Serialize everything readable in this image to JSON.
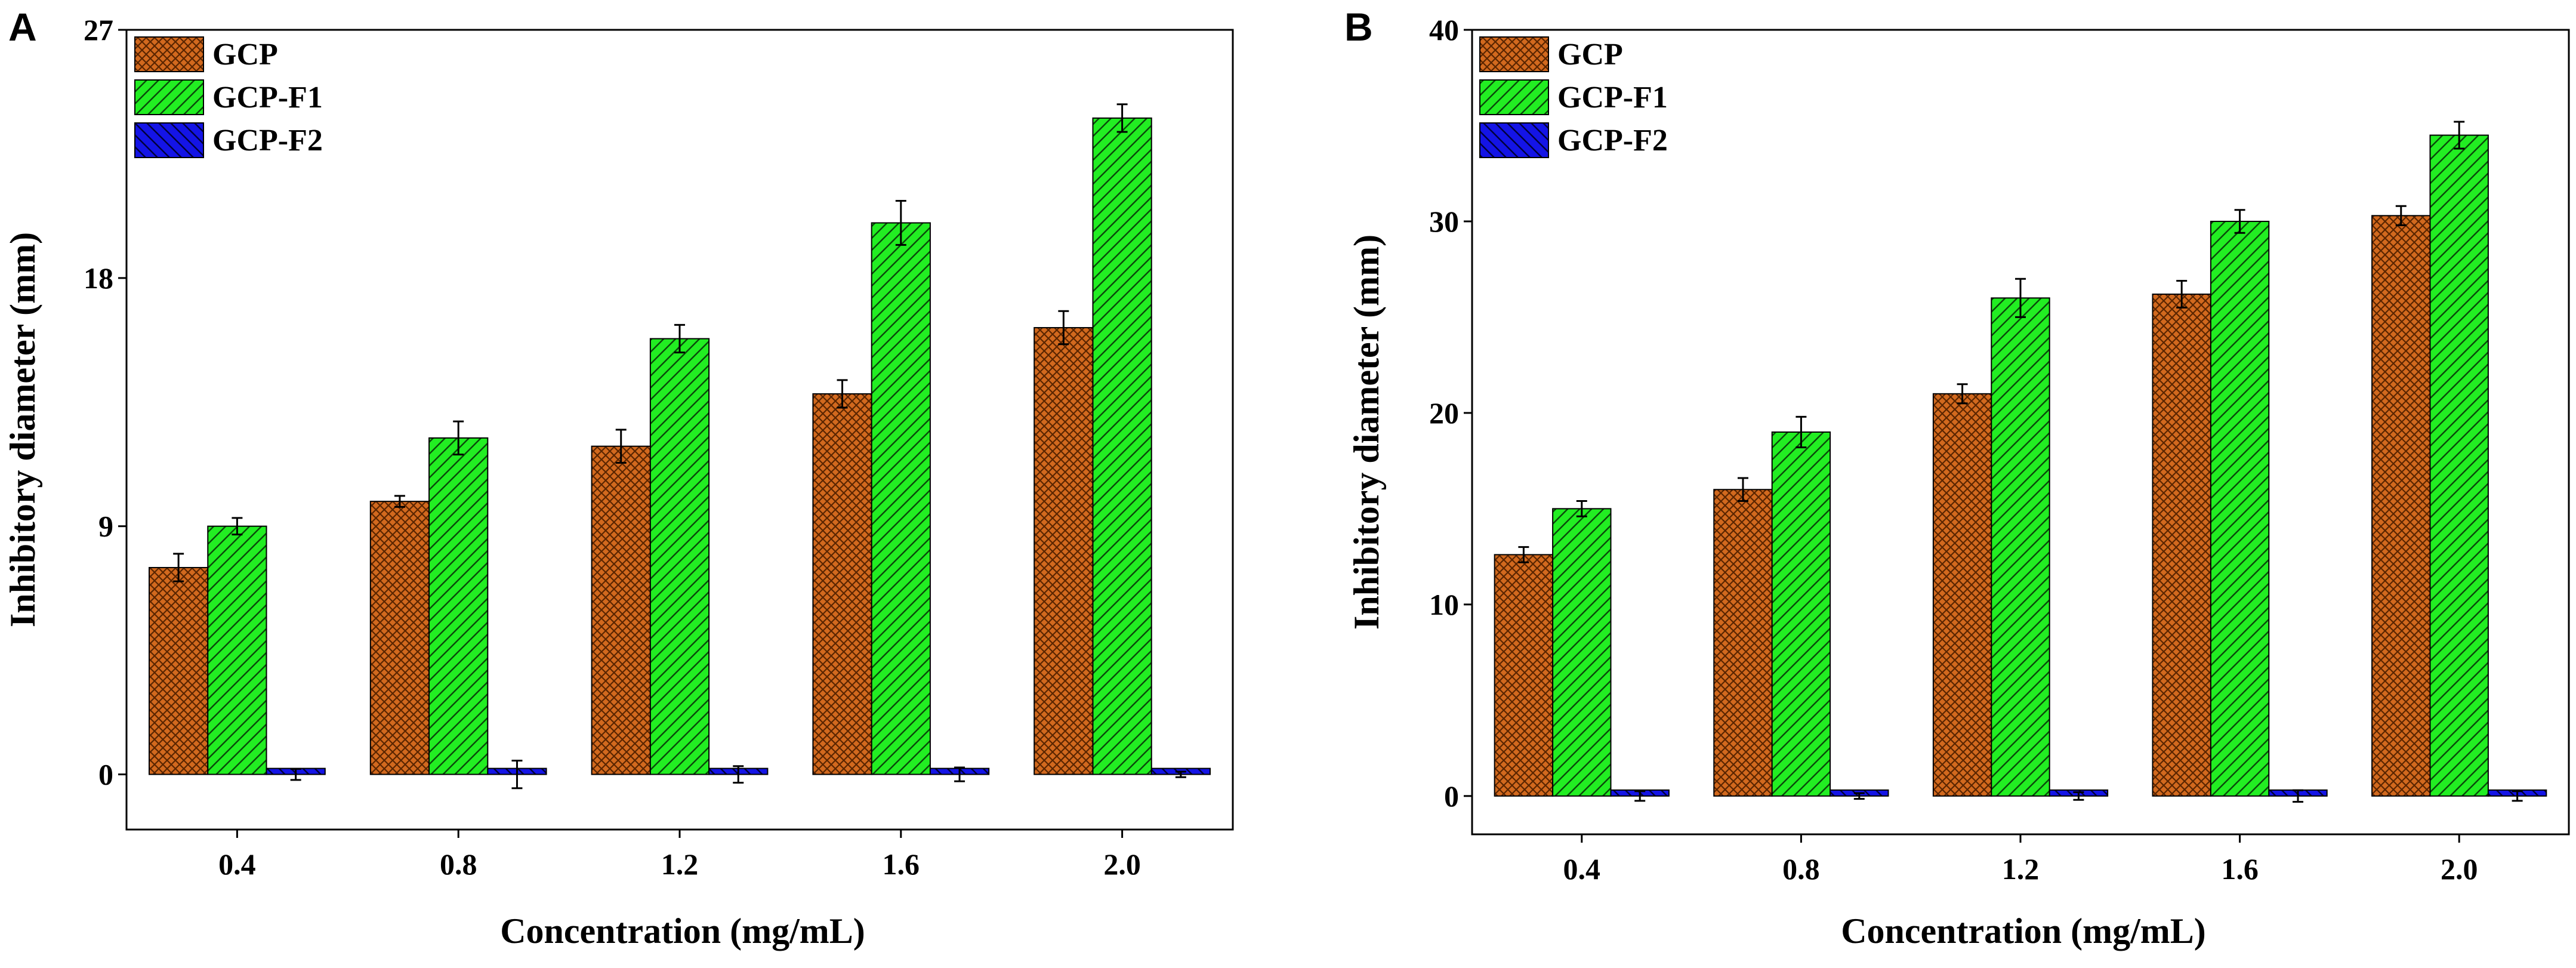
{
  "chart_data": [
    {
      "type": "bar",
      "panel_label": "A",
      "title": "",
      "xlabel": "Concentration (mg/mL)",
      "ylabel": "Inhibitory diameter (mm)",
      "ylim": [
        -2,
        27
      ],
      "yticks": [
        0,
        9,
        18,
        27
      ],
      "categories": [
        "0.4",
        "0.8",
        "1.2",
        "1.6",
        "2.0"
      ],
      "legend_position": "top-left",
      "series": [
        {
          "name": "GCP",
          "color": "#d2691e",
          "pattern": "crosshatch",
          "values": [
            7.5,
            9.9,
            11.9,
            13.8,
            16.2
          ],
          "errors": [
            0.5,
            0.2,
            0.6,
            0.5,
            0.6
          ]
        },
        {
          "name": "GCP-F1",
          "color": "#22ee22",
          "pattern": "diagonal-up",
          "values": [
            9.0,
            12.2,
            15.8,
            20.0,
            23.8
          ],
          "errors": [
            0.3,
            0.6,
            0.5,
            0.8,
            0.5
          ]
        },
        {
          "name": "GCP-F2",
          "color": "#1414e6",
          "pattern": "diagonal-down",
          "values": [
            0.0,
            0.0,
            0.0,
            0.0,
            0.0
          ],
          "errors": [
            0.2,
            0.5,
            0.3,
            0.25,
            0.1
          ]
        }
      ]
    },
    {
      "type": "bar",
      "panel_label": "B",
      "title": "",
      "xlabel": "Concentration (mg/mL)",
      "ylabel": "Inhibitory diameter (mm)",
      "ylim": [
        -2,
        40
      ],
      "yticks": [
        0,
        10,
        20,
        30,
        40
      ],
      "categories": [
        "0.4",
        "0.8",
        "1.2",
        "1.6",
        "2.0"
      ],
      "legend_position": "top-left",
      "series": [
        {
          "name": "GCP",
          "color": "#d2691e",
          "pattern": "crosshatch",
          "values": [
            12.6,
            16.0,
            21.0,
            26.2,
            30.3
          ],
          "errors": [
            0.4,
            0.6,
            0.5,
            0.7,
            0.5
          ]
        },
        {
          "name": "GCP-F1",
          "color": "#22ee22",
          "pattern": "diagonal-up",
          "values": [
            15.0,
            19.0,
            26.0,
            30.0,
            34.5
          ],
          "errors": [
            0.4,
            0.8,
            1.0,
            0.6,
            0.7
          ]
        },
        {
          "name": "GCP-F2",
          "color": "#1414e6",
          "pattern": "diagonal-down",
          "values": [
            0.0,
            0.0,
            0.0,
            0.0,
            0.0
          ],
          "errors": [
            0.25,
            0.15,
            0.2,
            0.3,
            0.25
          ]
        }
      ]
    }
  ]
}
